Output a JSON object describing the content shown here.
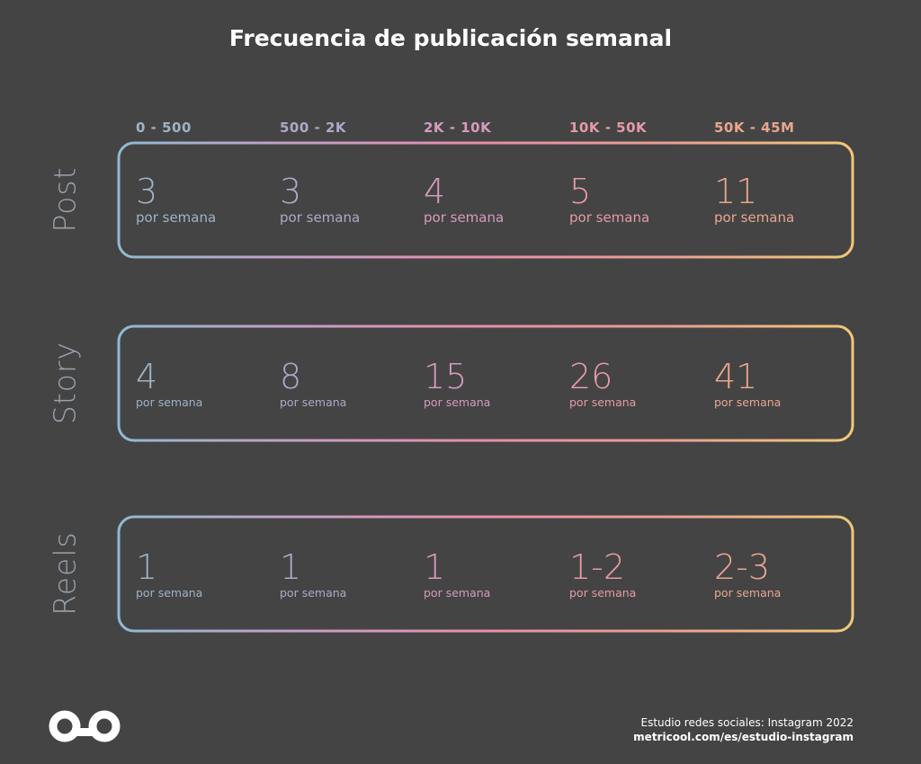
{
  "title": "Frecuencia de publicación semanal",
  "colors": {
    "background": "#444444",
    "gradient": [
      "#8fbad2",
      "#c69ec6",
      "#e68fa8",
      "#e99f92",
      "#f1c977"
    ],
    "columns": [
      "#9fb3c8",
      "#b0a8c8",
      "#d69bbd",
      "#e69aa6",
      "#e9a68f"
    ]
  },
  "chart_data": {
    "type": "table",
    "title": "Frecuencia de publicación semanal",
    "columns": [
      "0 - 500",
      "500 - 2K",
      "2K - 10K",
      "10K - 50K",
      "50K - 45M"
    ],
    "rows": [
      {
        "label": "Post",
        "values": [
          "3",
          "3",
          "4",
          "5",
          "11"
        ],
        "unit": "por semana"
      },
      {
        "label": "Story",
        "values": [
          "4",
          "8",
          "15",
          "26",
          "41"
        ],
        "unit": "por semana"
      },
      {
        "label": "Reels",
        "values": [
          "1",
          "1",
          "1",
          "1-2",
          "2-3"
        ],
        "unit": "por semana"
      }
    ]
  },
  "footer": {
    "logo": "metricool",
    "line1": "Estudio redes sociales: Instagram 2022",
    "line2": "metricool.com/es/estudio-instagram"
  }
}
